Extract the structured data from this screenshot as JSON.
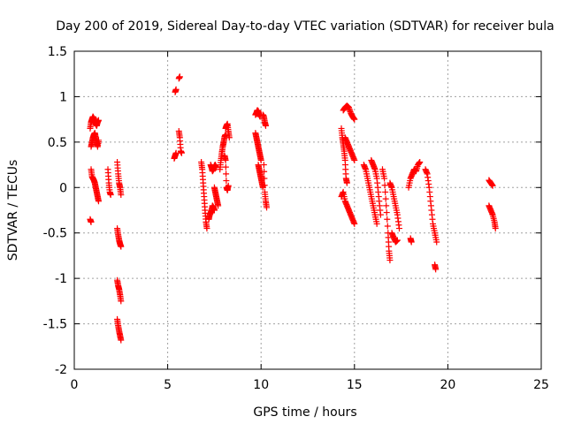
{
  "chart_data": {
    "type": "scatter",
    "title": "Day 200 of 2019, Sidereal Day-to-day VTEC variation (SDTVAR) for receiver bula",
    "xlabel": "GPS time / hours",
    "ylabel": "SDTVAR / TECUs",
    "xlim": [
      0,
      25
    ],
    "ylim": [
      -2,
      1.5
    ],
    "x_ticks": [
      0,
      5,
      10,
      15,
      20,
      25
    ],
    "x_tick_labels": [
      "0",
      "5",
      "10",
      "15",
      "20",
      "25"
    ],
    "y_ticks": [
      -2,
      -1.5,
      -1,
      -0.5,
      0,
      0.5,
      1,
      1.5
    ],
    "y_tick_labels": [
      "-2",
      "-1.5",
      "-1",
      "-0.5",
      "0",
      "0.5",
      "1",
      "1.5"
    ],
    "grid": true,
    "marker": "+",
    "marker_color": "#ff0000",
    "series": [
      {
        "name": "SDTVAR",
        "segments": [
          [
            [
              0.85,
              -0.35
            ],
            [
              0.9,
              -0.38
            ]
          ],
          [
            [
              0.85,
              0.65
            ],
            [
              0.9,
              0.72
            ],
            [
              0.95,
              0.75
            ],
            [
              1.0,
              0.78
            ],
            [
              1.05,
              0.76
            ],
            [
              1.1,
              0.72
            ],
            [
              1.15,
              0.7
            ],
            [
              1.2,
              0.68
            ],
            [
              1.25,
              0.72
            ],
            [
              1.3,
              0.74
            ]
          ],
          [
            [
              0.9,
              0.45
            ],
            [
              0.95,
              0.5
            ],
            [
              1.0,
              0.55
            ],
            [
              1.05,
              0.58
            ],
            [
              1.1,
              0.6
            ],
            [
              1.15,
              0.55
            ],
            [
              1.2,
              0.5
            ],
            [
              1.25,
              0.45
            ],
            [
              1.3,
              0.52
            ]
          ],
          [
            [
              0.9,
              0.2
            ],
            [
              0.95,
              0.12
            ],
            [
              1.0,
              0.1
            ],
            [
              1.05,
              0.08
            ],
            [
              1.1,
              0.05
            ],
            [
              1.15,
              0.0
            ],
            [
              1.2,
              -0.05
            ],
            [
              1.25,
              -0.1
            ],
            [
              1.3,
              -0.15
            ]
          ],
          [
            [
              1.8,
              0.2
            ],
            [
              1.85,
              0.05
            ],
            [
              1.9,
              -0.05
            ],
            [
              1.95,
              -0.08
            ]
          ],
          [
            [
              2.3,
              0.28
            ],
            [
              2.35,
              0.15
            ],
            [
              2.4,
              0.05
            ],
            [
              2.45,
              0.0
            ],
            [
              2.5,
              -0.08
            ]
          ],
          [
            [
              2.3,
              -0.45
            ],
            [
              2.35,
              -0.52
            ],
            [
              2.4,
              -0.58
            ],
            [
              2.45,
              -0.62
            ],
            [
              2.5,
              -0.65
            ]
          ],
          [
            [
              2.3,
              -1.02
            ],
            [
              2.35,
              -1.08
            ],
            [
              2.4,
              -1.12
            ],
            [
              2.45,
              -1.18
            ],
            [
              2.5,
              -1.25
            ]
          ],
          [
            [
              2.3,
              -1.45
            ],
            [
              2.35,
              -1.52
            ],
            [
              2.4,
              -1.58
            ],
            [
              2.45,
              -1.63
            ],
            [
              2.5,
              -1.68
            ]
          ],
          [
            [
              5.35,
              0.32
            ],
            [
              5.4,
              0.35
            ],
            [
              5.45,
              0.38
            ]
          ],
          [
            [
              5.4,
              1.05
            ],
            [
              5.45,
              1.08
            ]
          ],
          [
            [
              5.6,
              1.2
            ],
            [
              5.65,
              1.22
            ]
          ],
          [
            [
              5.6,
              0.62
            ],
            [
              5.65,
              0.55
            ],
            [
              5.7,
              0.4
            ],
            [
              5.75,
              0.38
            ]
          ],
          [
            [
              6.8,
              0.28
            ],
            [
              6.85,
              0.2
            ],
            [
              6.9,
              0.05
            ],
            [
              6.95,
              -0.1
            ],
            [
              7.0,
              -0.25
            ],
            [
              7.05,
              -0.38
            ],
            [
              7.1,
              -0.45
            ]
          ],
          [
            [
              7.2,
              -0.35
            ],
            [
              7.25,
              -0.3
            ],
            [
              7.3,
              -0.28
            ],
            [
              7.35,
              -0.25
            ],
            [
              7.4,
              -0.2
            ],
            [
              7.45,
              -0.22
            ],
            [
              7.5,
              -0.25
            ]
          ],
          [
            [
              7.3,
              0.25
            ],
            [
              7.35,
              0.22
            ],
            [
              7.4,
              0.18
            ],
            [
              7.45,
              0.2
            ],
            [
              7.5,
              0.24
            ],
            [
              7.55,
              0.25
            ],
            [
              7.6,
              0.22
            ]
          ],
          [
            [
              7.5,
              0.0
            ],
            [
              7.55,
              -0.05
            ],
            [
              7.6,
              -0.1
            ],
            [
              7.65,
              -0.15
            ],
            [
              7.7,
              -0.2
            ]
          ],
          [
            [
              7.8,
              0.2
            ],
            [
              7.85,
              0.3
            ],
            [
              7.9,
              0.38
            ],
            [
              7.95,
              0.45
            ],
            [
              8.0,
              0.5
            ],
            [
              8.05,
              0.56
            ],
            [
              8.1,
              0.58
            ]
          ],
          [
            [
              8.1,
              0.65
            ],
            [
              8.15,
              0.68
            ],
            [
              8.2,
              0.7
            ],
            [
              8.25,
              0.62
            ],
            [
              8.3,
              0.55
            ]
          ],
          [
            [
              8.05,
              0.35
            ],
            [
              8.1,
              0.3
            ],
            [
              8.15,
              0.0
            ],
            [
              8.2,
              -0.03
            ],
            [
              8.25,
              0.02
            ]
          ],
          [
            [
              9.7,
              0.8
            ],
            [
              9.75,
              0.82
            ],
            [
              9.8,
              0.85
            ],
            [
              9.85,
              0.84
            ],
            [
              9.9,
              0.8
            ],
            [
              9.95,
              0.78
            ]
          ],
          [
            [
              9.7,
              0.6
            ],
            [
              9.75,
              0.55
            ],
            [
              9.8,
              0.5
            ],
            [
              9.85,
              0.45
            ],
            [
              9.9,
              0.4
            ],
            [
              9.95,
              0.35
            ],
            [
              10.0,
              0.3
            ]
          ],
          [
            [
              9.85,
              0.25
            ],
            [
              9.9,
              0.2
            ],
            [
              9.95,
              0.15
            ],
            [
              10.0,
              0.1
            ],
            [
              10.05,
              0.05
            ],
            [
              10.1,
              0.0
            ]
          ],
          [
            [
              10.1,
              0.8
            ],
            [
              10.15,
              0.78
            ],
            [
              10.2,
              0.72
            ],
            [
              10.25,
              0.68
            ]
          ],
          [
            [
              10.15,
              0.25
            ],
            [
              10.2,
              -0.05
            ],
            [
              10.25,
              -0.15
            ],
            [
              10.3,
              -0.22
            ]
          ],
          [
            [
              14.3,
              0.65
            ],
            [
              14.35,
              0.55
            ],
            [
              14.4,
              0.48
            ],
            [
              14.45,
              0.4
            ],
            [
              14.5,
              0.3
            ],
            [
              14.55,
              0.1
            ],
            [
              14.6,
              0.05
            ]
          ],
          [
            [
              14.4,
              0.85
            ],
            [
              14.5,
              0.88
            ],
            [
              14.6,
              0.9
            ],
            [
              14.7,
              0.88
            ],
            [
              14.8,
              0.82
            ],
            [
              14.9,
              0.78
            ],
            [
              15.0,
              0.75
            ]
          ],
          [
            [
              14.5,
              0.55
            ],
            [
              14.6,
              0.5
            ],
            [
              14.7,
              0.45
            ],
            [
              14.8,
              0.4
            ],
            [
              14.9,
              0.35
            ],
            [
              15.0,
              0.3
            ]
          ],
          [
            [
              14.3,
              -0.1
            ],
            [
              14.4,
              -0.05
            ],
            [
              14.5,
              -0.15
            ],
            [
              14.6,
              -0.2
            ],
            [
              14.7,
              -0.25
            ],
            [
              14.8,
              -0.3
            ],
            [
              14.9,
              -0.35
            ],
            [
              15.0,
              -0.4
            ]
          ],
          [
            [
              15.5,
              0.25
            ],
            [
              15.6,
              0.2
            ],
            [
              15.7,
              0.1
            ],
            [
              15.8,
              0.0
            ],
            [
              15.9,
              -0.1
            ],
            [
              16.0,
              -0.2
            ],
            [
              16.1,
              -0.3
            ],
            [
              16.2,
              -0.4
            ]
          ],
          [
            [
              15.9,
              0.3
            ],
            [
              16.0,
              0.25
            ],
            [
              16.1,
              0.2
            ],
            [
              16.2,
              0.1
            ],
            [
              16.3,
              -0.1
            ],
            [
              16.4,
              -0.3
            ]
          ],
          [
            [
              16.5,
              0.2
            ],
            [
              16.6,
              0.1
            ],
            [
              16.7,
              -0.2
            ],
            [
              16.8,
              -0.5
            ],
            [
              16.85,
              -0.7
            ],
            [
              16.9,
              -0.8
            ]
          ],
          [
            [
              16.9,
              0.05
            ],
            [
              17.0,
              0.0
            ],
            [
              17.1,
              -0.1
            ],
            [
              17.2,
              -0.2
            ],
            [
              17.3,
              -0.3
            ],
            [
              17.4,
              -0.45
            ]
          ],
          [
            [
              17.0,
              -0.5
            ],
            [
              17.1,
              -0.55
            ],
            [
              17.2,
              -0.6
            ],
            [
              17.3,
              -0.58
            ]
          ],
          [
            [
              18.0,
              -0.56
            ],
            [
              18.05,
              -0.6
            ]
          ],
          [
            [
              17.9,
              0.0
            ],
            [
              18.0,
              0.1
            ],
            [
              18.1,
              0.15
            ],
            [
              18.2,
              0.2
            ],
            [
              18.3,
              0.18
            ],
            [
              18.4,
              0.25
            ],
            [
              18.5,
              0.28
            ]
          ],
          [
            [
              18.8,
              0.2
            ],
            [
              18.9,
              0.15
            ],
            [
              19.0,
              0.0
            ],
            [
              19.1,
              -0.2
            ],
            [
              19.2,
              -0.4
            ],
            [
              19.3,
              -0.5
            ],
            [
              19.4,
              -0.6
            ]
          ],
          [
            [
              19.3,
              -0.85
            ],
            [
              19.35,
              -0.9
            ]
          ],
          [
            [
              22.2,
              0.08
            ],
            [
              22.3,
              0.05
            ],
            [
              22.4,
              0.02
            ]
          ],
          [
            [
              22.2,
              -0.2
            ],
            [
              22.3,
              -0.25
            ],
            [
              22.4,
              -0.3
            ],
            [
              22.5,
              -0.38
            ],
            [
              22.55,
              -0.45
            ]
          ]
        ]
      }
    ]
  }
}
